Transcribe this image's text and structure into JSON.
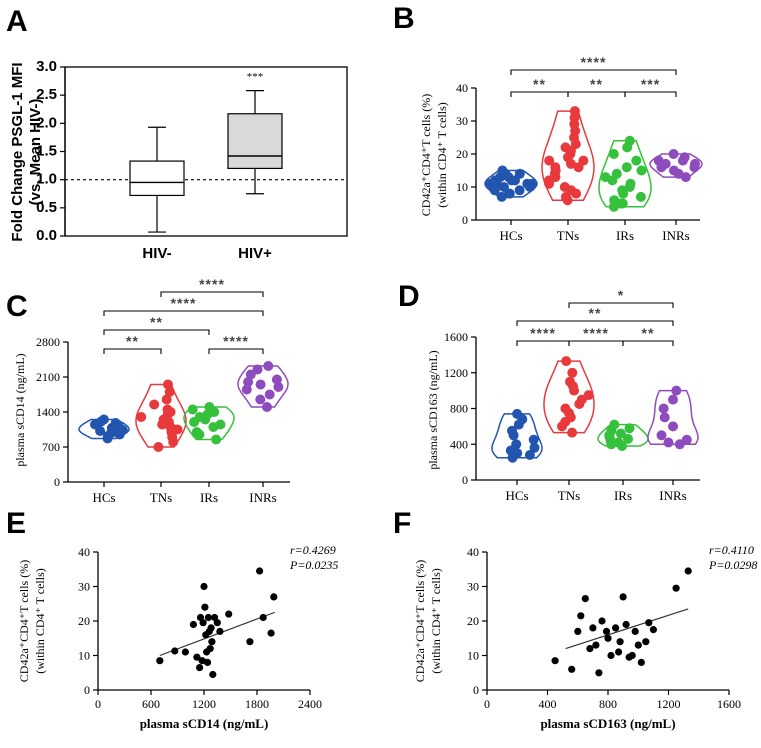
{
  "colors": {
    "HCs": "#2255b0",
    "TNs": "#e8393d",
    "IRs": "#35c13b",
    "INRs": "#8e4bbd",
    "box_hiv_neg": "#ffffff",
    "box_hiv_pos": "#d9d9d9"
  },
  "chart_data": [
    {
      "panel": "A",
      "type": "box",
      "ylabel_line1": "Fold Change PSGL-1 MFI",
      "ylabel_line2": "(vs. Mean HIV-)",
      "categories": [
        "HIV-",
        "HIV+"
      ],
      "ylim": [
        0.0,
        3.0
      ],
      "yticks": [
        "0.0",
        "0.5",
        "1.0",
        "1.5",
        "2.0",
        "2.5",
        "3.0"
      ],
      "reference_line": 1.0,
      "boxes": [
        {
          "name": "HIV-",
          "min": 0.07,
          "q1": 0.72,
          "median": 0.95,
          "q3": 1.33,
          "max": 1.93
        },
        {
          "name": "HIV+",
          "min": 0.75,
          "q1": 1.2,
          "median": 1.42,
          "q3": 2.17,
          "max": 2.58
        }
      ],
      "annotation": "***"
    },
    {
      "panel": "B",
      "type": "violin",
      "ylabel_line1": "CD42a⁺CD4⁺T cells (%)",
      "ylabel_line2": "(within CD4⁺ T cells)",
      "categories": [
        "HCs",
        "TNs",
        "IRs",
        "INRs"
      ],
      "ylim": [
        0,
        40
      ],
      "yticks": [
        "0",
        "10",
        "20",
        "30",
        "40"
      ],
      "series": [
        {
          "name": "HCs",
          "values": [
            7,
            8,
            8,
            9,
            9,
            10,
            10,
            10,
            11,
            11,
            11,
            11,
            12,
            12,
            12,
            13,
            13,
            14,
            14,
            15
          ]
        },
        {
          "name": "TNs",
          "values": [
            6,
            7,
            8,
            9,
            10,
            11,
            12,
            13,
            14,
            15,
            16,
            16,
            17,
            18,
            18,
            19,
            20,
            21,
            22,
            23,
            25,
            27,
            29,
            31,
            33
          ]
        },
        {
          "name": "IRs",
          "values": [
            4,
            5,
            5,
            6,
            7,
            8,
            9,
            10,
            11,
            12,
            13,
            14,
            15,
            16,
            18,
            20,
            22,
            24
          ]
        },
        {
          "name": "INRs",
          "values": [
            13,
            14,
            15,
            16,
            16,
            17,
            17,
            18,
            18,
            19,
            20
          ]
        }
      ],
      "comparisons": [
        {
          "from": "HCs",
          "to": "INRs",
          "label": "****"
        },
        {
          "from": "HCs",
          "to": "TNs",
          "label": "**"
        },
        {
          "from": "TNs",
          "to": "IRs",
          "label": "**"
        },
        {
          "from": "IRs",
          "to": "INRs",
          "label": "***"
        }
      ]
    },
    {
      "panel": "C",
      "type": "violin",
      "ylabel_line1": "plasma sCD14 (ng/mL)",
      "ylabel_line2": "",
      "categories": [
        "HCs",
        "TNs",
        "IRs",
        "INRs"
      ],
      "ylim": [
        0,
        2800
      ],
      "yticks": [
        "0",
        "700",
        "1400",
        "2100",
        "2800"
      ],
      "series": [
        {
          "name": "HCs",
          "values": [
            870,
            920,
            950,
            980,
            1000,
            1020,
            1040,
            1060,
            1080,
            1100,
            1120,
            1150,
            1180,
            1210,
            1250
          ]
        },
        {
          "name": "TNs",
          "values": [
            700,
            800,
            900,
            1000,
            1050,
            1100,
            1150,
            1200,
            1250,
            1300,
            1350,
            1400,
            1450,
            1550,
            1650,
            1800,
            1950
          ]
        },
        {
          "name": "IRs",
          "values": [
            850,
            950,
            1000,
            1100,
            1150,
            1200,
            1250,
            1300,
            1350,
            1400,
            1450,
            1500
          ]
        },
        {
          "name": "INRs",
          "values": [
            1500,
            1650,
            1750,
            1850,
            1900,
            1950,
            2000,
            2050,
            2150,
            2250,
            2320
          ]
        }
      ],
      "comparisons": [
        {
          "from": "TNs",
          "to": "INRs",
          "label": "****"
        },
        {
          "from": "HCs",
          "to": "INRs",
          "label": "****"
        },
        {
          "from": "HCs",
          "to": "IRs",
          "label": "**"
        },
        {
          "from": "HCs",
          "to": "TNs",
          "label": "**"
        },
        {
          "from": "IRs",
          "to": "INRs",
          "label": "****"
        }
      ]
    },
    {
      "panel": "D",
      "type": "violin",
      "ylabel_line1": "plasma sCD163 (ng/mL)",
      "ylabel_line2": "",
      "categories": [
        "HCs",
        "TNs",
        "IRs",
        "INRs"
      ],
      "ylim": [
        0,
        1600
      ],
      "yticks": [
        "0",
        "400",
        "800",
        "1200",
        "1600"
      ],
      "series": [
        {
          "name": "HCs",
          "values": [
            250,
            280,
            300,
            330,
            360,
            400,
            450,
            500,
            550,
            620,
            680,
            740
          ]
        },
        {
          "name": "TNs",
          "values": [
            530,
            600,
            650,
            700,
            750,
            800,
            850,
            900,
            950,
            1000,
            1050,
            1100,
            1200,
            1330
          ]
        },
        {
          "name": "IRs",
          "values": [
            380,
            400,
            420,
            440,
            460,
            480,
            500,
            520,
            550,
            580,
            620
          ]
        },
        {
          "name": "INRs",
          "values": [
            400,
            420,
            450,
            500,
            600,
            700,
            800,
            900,
            1000
          ]
        }
      ],
      "comparisons": [
        {
          "from": "TNs",
          "to": "INRs",
          "label": "*"
        },
        {
          "from": "HCs",
          "to": "INRs",
          "label": "**"
        },
        {
          "from": "HCs",
          "to": "TNs",
          "label": "****"
        },
        {
          "from": "TNs",
          "to": "IRs",
          "label": "****"
        },
        {
          "from": "IRs",
          "to": "INRs",
          "label": "**"
        }
      ]
    },
    {
      "panel": "E",
      "type": "scatter",
      "xlabel": "plasma sCD14 (ng/mL)",
      "ylabel_line1": "CD42a⁺CD4⁺T cells (%)",
      "ylabel_line2": "(within CD4⁺ T cells)",
      "xlim": [
        0,
        2400
      ],
      "ylim": [
        0,
        40
      ],
      "xticks": [
        "0",
        "600",
        "1200",
        "1800",
        "2400"
      ],
      "yticks": [
        "0",
        "10",
        "20",
        "30",
        "40"
      ],
      "r_text": "r=0.4269",
      "p_text": "P=0.0235",
      "fit": {
        "x": [
          700,
          2000
        ],
        "y": [
          10.0,
          22.5
        ]
      },
      "points": {
        "x": [
          700,
          870,
          990,
          1080,
          1120,
          1150,
          1160,
          1180,
          1190,
          1200,
          1210,
          1220,
          1230,
          1240,
          1250,
          1260,
          1270,
          1280,
          1290,
          1300,
          1320,
          1350,
          1380,
          1480,
          1720,
          1830,
          1870,
          1960,
          1990
        ],
        "y": [
          8.5,
          11.3,
          11.0,
          19.0,
          9.5,
          6.5,
          21.0,
          8.5,
          19.5,
          30.0,
          24.0,
          16.0,
          11.0,
          8.0,
          21.0,
          17.0,
          12.0,
          18.0,
          14.0,
          4.5,
          21.0,
          19.5,
          17.0,
          22.0,
          14.0,
          34.5,
          21.0,
          16.5,
          27.0
        ]
      }
    },
    {
      "panel": "F",
      "type": "scatter",
      "xlabel": "plasma sCD163 (ng/mL)",
      "ylabel_line1": "CD42a⁺CD4⁺T cells (%)",
      "ylabel_line2": "(within CD4⁺ T cells)",
      "xlim": [
        0,
        1600
      ],
      "ylim": [
        0,
        40
      ],
      "xticks": [
        "0",
        "400",
        "800",
        "1200",
        "1600"
      ],
      "yticks": [
        "0",
        "10",
        "20",
        "30",
        "40"
      ],
      "r_text": "r=0.4110",
      "p_text": "P=0.0298",
      "fit": {
        "x": [
          520,
          1330
        ],
        "y": [
          12.0,
          23.5
        ]
      },
      "points": {
        "x": [
          450,
          560,
          600,
          620,
          650,
          680,
          700,
          720,
          740,
          760,
          790,
          800,
          820,
          850,
          870,
          880,
          900,
          920,
          940,
          960,
          980,
          1000,
          1020,
          1050,
          1070,
          1100,
          1250,
          1330
        ],
        "y": [
          8.5,
          6.0,
          17.0,
          21.5,
          26.5,
          12.0,
          18.0,
          13.0,
          5.0,
          20.0,
          17.0,
          15.0,
          10.0,
          18.0,
          11.0,
          14.0,
          27.0,
          19.0,
          9.5,
          10.0,
          17.0,
          13.0,
          8.0,
          14.0,
          19.5,
          17.5,
          29.5,
          34.5
        ]
      }
    }
  ]
}
